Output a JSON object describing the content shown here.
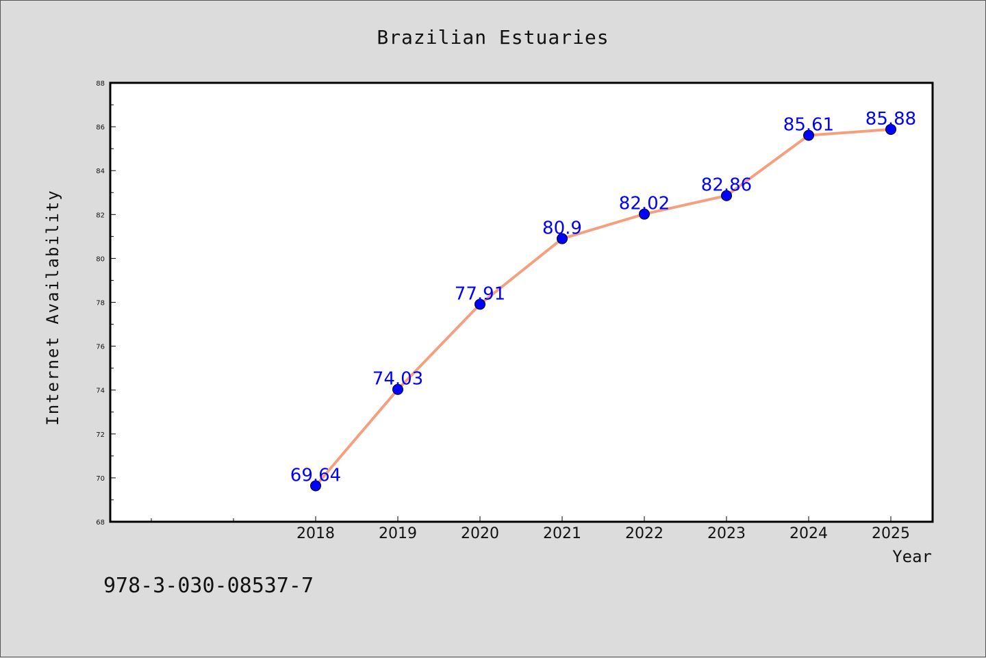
{
  "chart_data": {
    "type": "line",
    "title": "Brazilian Estuaries",
    "xlabel": "Year",
    "ylabel": "Internet Availability",
    "categories": [
      "2018",
      "2019",
      "2020",
      "2021",
      "2022",
      "2023",
      "2024",
      "2025"
    ],
    "series": [
      {
        "values": [
          69.64,
          74.03,
          77.91,
          80.9,
          82.02,
          82.86,
          85.61,
          85.88
        ]
      }
    ],
    "data_labels": [
      "69.64",
      "74.03",
      "77.91",
      "80.9",
      "82.02",
      "82.86",
      "85.61",
      "85.88"
    ],
    "ylim": [
      68,
      88
    ],
    "y_ticks": [
      "68",
      "70",
      "72",
      "74",
      "76",
      "78",
      "80",
      "82",
      "84",
      "86",
      "88"
    ],
    "grid": false,
    "colors": {
      "line": "#f4a07f",
      "marker": "#0000ff",
      "label": "#0000ff"
    }
  },
  "footnote": "978-3-030-08537-7"
}
